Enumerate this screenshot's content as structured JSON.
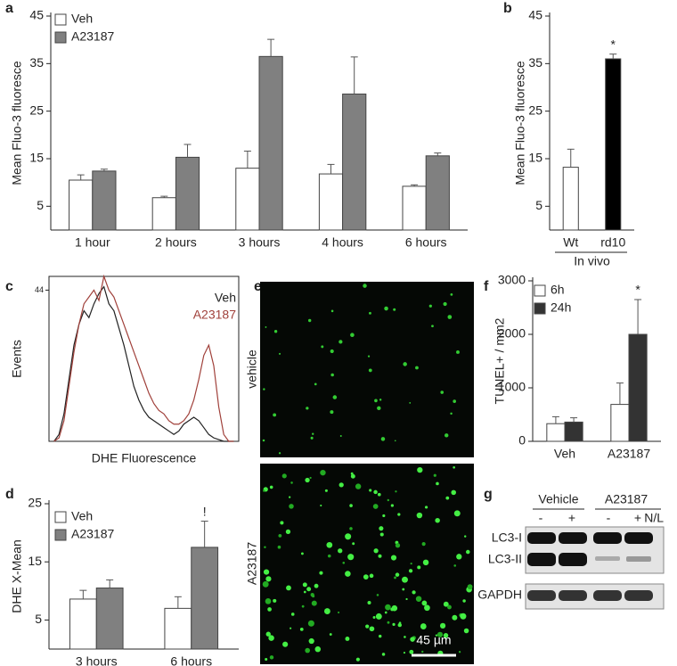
{
  "panel_labels": [
    "a",
    "b",
    "c",
    "d",
    "e",
    "f",
    "g"
  ],
  "chart_data": [
    {
      "type": "bar",
      "ylabel": "Mean Fluo-3 fluoresce",
      "categories": [
        "1 hour",
        "2 hours",
        "3 hours",
        "4 hours",
        "6 hours"
      ],
      "series": [
        {
          "name": "Veh",
          "color": "#ffffff",
          "values": [
            10.5,
            6.8,
            13,
            11.8,
            9.2
          ],
          "errors": [
            1.1,
            0.3,
            3.6,
            2,
            0.3
          ]
        },
        {
          "name": "A23187",
          "color": "#808080",
          "values": [
            12.4,
            15.3,
            36.5,
            28.6,
            15.6
          ],
          "errors": [
            0.4,
            2.7,
            3.6,
            7.8,
            0.6
          ]
        }
      ],
      "ylim": [
        0,
        45
      ],
      "yticks": [
        5,
        15,
        25,
        35,
        45
      ]
    },
    {
      "type": "bar",
      "ylabel": "Mean Fluo-3 fluoresce",
      "group_label": "In vivo",
      "annotation": "*",
      "categories": [
        "Wt",
        "rd10"
      ],
      "series": [
        {
          "colors": [
            "#ffffff",
            "#000000"
          ],
          "values": [
            13.2,
            36
          ],
          "errors": [
            3.8,
            1
          ]
        }
      ],
      "ylim": [
        0,
        45
      ],
      "yticks": [
        5,
        15,
        25,
        35,
        45
      ]
    },
    {
      "type": "line",
      "ylabel": "Events",
      "xlabel": "DHE Fluorescence",
      "x": [
        1,
        2,
        3,
        4,
        5,
        6,
        7,
        8,
        9,
        10,
        11,
        12,
        13,
        14,
        15,
        16,
        17,
        18,
        19,
        20,
        21,
        22,
        23,
        24,
        25,
        26,
        27,
        28,
        29,
        30,
        31,
        32,
        33,
        34,
        35,
        36,
        37
      ],
      "series": [
        {
          "name": "Veh",
          "color": "#222222",
          "values": [
            0,
            2,
            8,
            18,
            28,
            34,
            38,
            36,
            40,
            43,
            45,
            40,
            38,
            33,
            28,
            22,
            16,
            12,
            9,
            7,
            6,
            5,
            4,
            3,
            2,
            3,
            5,
            6,
            7,
            6,
            4,
            2,
            1,
            0.5,
            0,
            0,
            0
          ]
        },
        {
          "name": "A23187",
          "color": "#a0403a",
          "values": [
            0,
            1,
            6,
            16,
            26,
            34,
            40,
            42,
            44,
            41,
            48,
            44,
            42,
            38,
            34,
            30,
            26,
            22,
            18,
            14,
            11,
            9,
            8,
            6,
            5,
            5,
            6,
            8,
            12,
            18,
            25,
            28,
            22,
            10,
            2,
            0,
            0
          ]
        }
      ],
      "xlim": [
        0,
        38
      ],
      "ylim": [
        0,
        48
      ],
      "yticks": [
        44
      ]
    },
    {
      "type": "bar",
      "ylabel": "DHE X-Mean",
      "annotation": "!",
      "categories": [
        "3 hours",
        "6 hours"
      ],
      "series": [
        {
          "name": "Veh",
          "color": "#ffffff",
          "values": [
            8.6,
            7
          ],
          "errors": [
            1.5,
            2
          ]
        },
        {
          "name": "A23187",
          "color": "#808080",
          "values": [
            10.5,
            17.5
          ],
          "errors": [
            1.4,
            4.5
          ]
        }
      ],
      "ylim": [
        0,
        25
      ],
      "yticks": [
        5,
        15,
        25
      ]
    },
    {
      "type": "bar",
      "ylabel": "TUNEL+ / mm2",
      "annotation": "*",
      "categories": [
        "Veh",
        "A23187"
      ],
      "series": [
        {
          "name": "6h",
          "color": "#ffffff",
          "values": [
            330,
            690
          ],
          "errors": [
            130,
            400
          ]
        },
        {
          "name": "24h",
          "color": "#333333",
          "values": [
            360,
            2000
          ],
          "errors": [
            80,
            650
          ]
        }
      ],
      "ylim": [
        0,
        3000
      ],
      "yticks": [
        0,
        1000,
        2000,
        3000
      ]
    }
  ],
  "images": {
    "top_label": "vehicle",
    "bottom_label": "A23187",
    "scale_bar": "45 µm"
  },
  "blot": {
    "groups": [
      "Vehicle",
      "A23187"
    ],
    "lanes": [
      "-",
      "+",
      "-",
      "+",
      "N/L"
    ],
    "rows": [
      "LC3-I",
      "LC3-II",
      "GAPDH"
    ]
  }
}
